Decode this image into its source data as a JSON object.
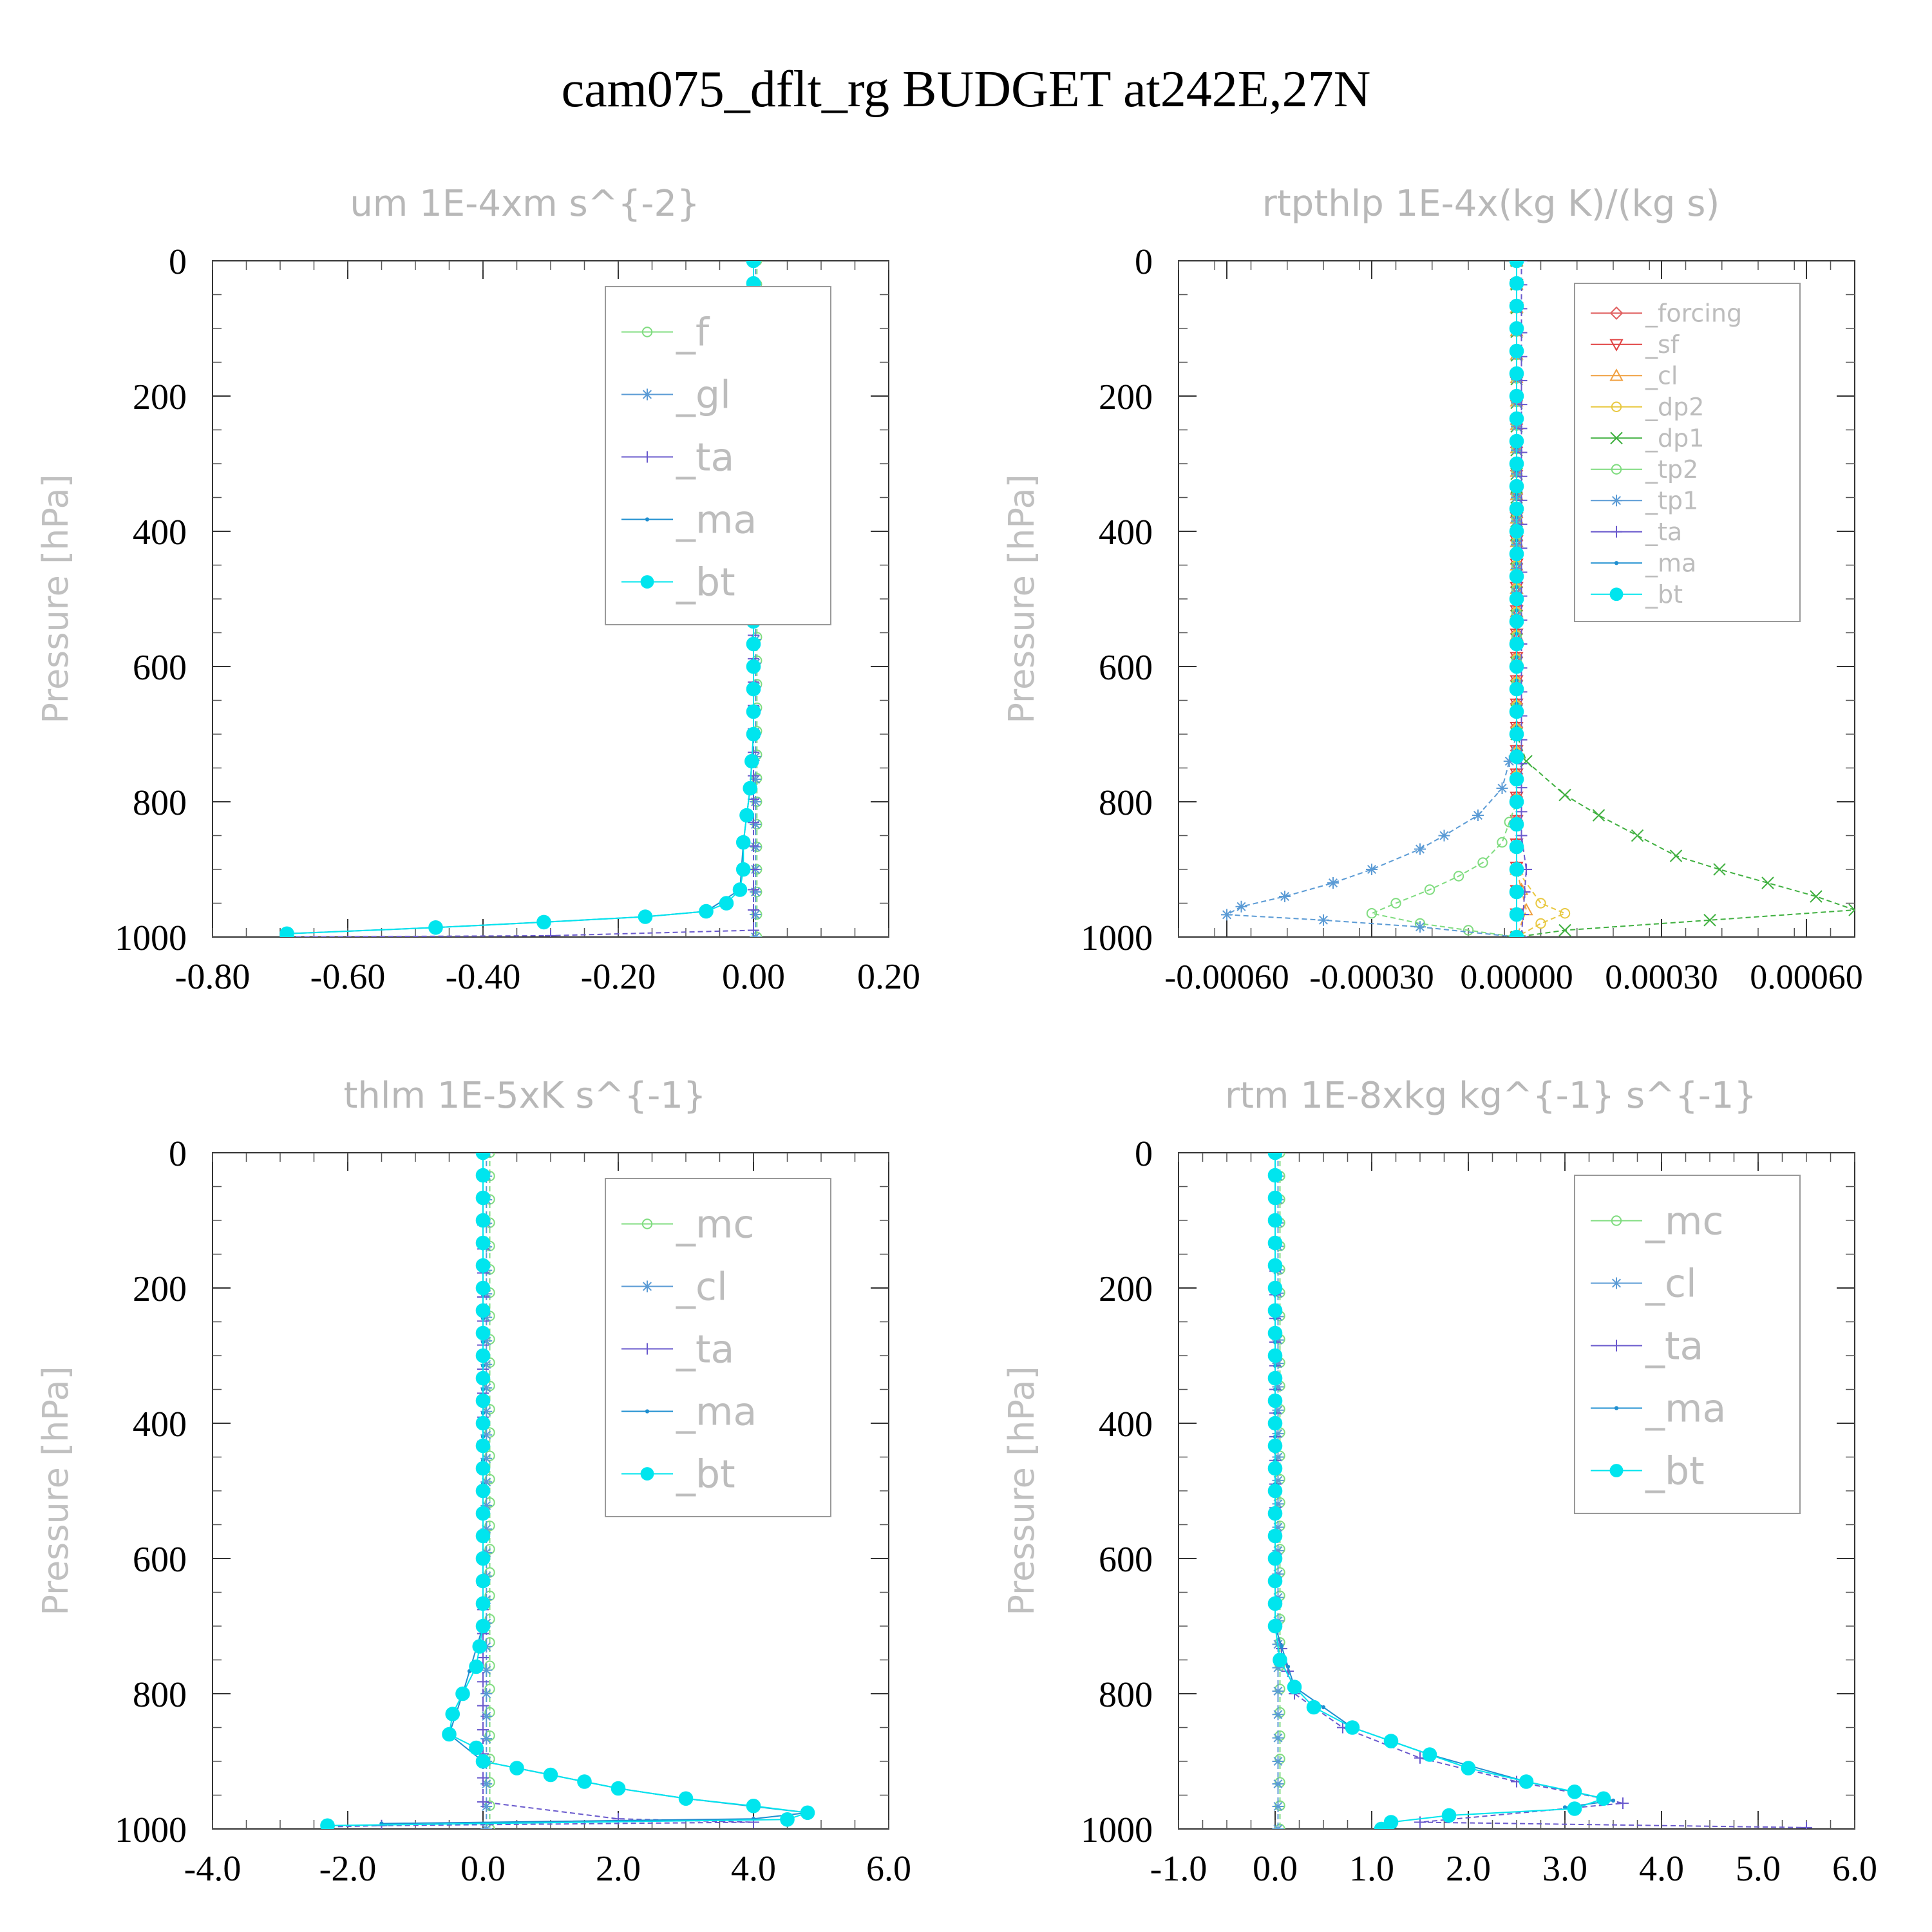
{
  "figure_title": "cam075_dflt_rg  BUDGET at242E,27N",
  "chart_data": [
    {
      "type": "line",
      "title": "um  1E-4xm s^{-2}",
      "ylabel": "Pressure [hPa]",
      "xlim": [
        -0.8,
        0.2
      ],
      "ylim": [
        1000,
        0
      ],
      "xticks": [
        "-0.80",
        "-0.60",
        "-0.40",
        "-0.20",
        "0.00",
        "0.20"
      ],
      "yticks": [
        "0",
        "200",
        "400",
        "600",
        "800",
        "1000"
      ],
      "legend_position": "top-right",
      "legend_font": 60,
      "series": [
        {
          "name": "_f",
          "color": "#7fdc7f",
          "marker": "circle-open"
        },
        {
          "name": "_gl",
          "color": "#5b9bd5",
          "marker": "asterisk"
        },
        {
          "name": "_ta",
          "color": "#6a5acd",
          "marker": "plus"
        },
        {
          "name": "_ma",
          "color": "#1f8fd0",
          "marker": "dot"
        },
        {
          "name": "_bt",
          "color": "#00e5ee",
          "marker": "circle-filled"
        }
      ]
    },
    {
      "type": "line",
      "title": "rtpthlp  1E-4x(kg K)/(kg s)",
      "ylabel": "Pressure [hPa]",
      "xlim": [
        -0.0007,
        0.0007
      ],
      "ylim": [
        1000,
        0
      ],
      "xticks": [
        "-0.00060",
        "-0.00030",
        "0.00000",
        "0.00030",
        "0.00060"
      ],
      "xtick_values": [
        -0.0006,
        -0.0003,
        0.0,
        0.0003,
        0.0006
      ],
      "yticks": [
        "0",
        "200",
        "400",
        "600",
        "800",
        "1000"
      ],
      "legend_position": "top-right",
      "legend_font": 38,
      "series": [
        {
          "name": "_forcing",
          "color": "#e06060",
          "marker": "diamond-open"
        },
        {
          "name": "_sf",
          "color": "#e04040",
          "marker": "triangle-down"
        },
        {
          "name": "_cl",
          "color": "#f0a040",
          "marker": "triangle-up"
        },
        {
          "name": "_dp2",
          "color": "#e8c840",
          "marker": "circle-open"
        },
        {
          "name": "_dp1",
          "color": "#40b040",
          "marker": "x"
        },
        {
          "name": "_tp2",
          "color": "#7fdc7f",
          "marker": "circle-open"
        },
        {
          "name": "_tp1",
          "color": "#5b9bd5",
          "marker": "asterisk"
        },
        {
          "name": "_ta",
          "color": "#6a5acd",
          "marker": "plus"
        },
        {
          "name": "_ma",
          "color": "#1f8fd0",
          "marker": "dot"
        },
        {
          "name": "_bt",
          "color": "#00e5ee",
          "marker": "circle-filled"
        }
      ]
    },
    {
      "type": "line",
      "title": "thlm  1E-5xK s^{-1}",
      "ylabel": "Pressure [hPa]",
      "xlim": [
        -4,
        6
      ],
      "ylim": [
        1000,
        0
      ],
      "xticks": [
        "-4.0",
        "-2.0",
        "0.0",
        "2.0",
        "4.0",
        "6.0"
      ],
      "yticks": [
        "0",
        "200",
        "400",
        "600",
        "800",
        "1000"
      ],
      "legend_position": "top-right",
      "legend_font": 60,
      "series": [
        {
          "name": "_mc",
          "color": "#7fdc7f",
          "marker": "circle-open"
        },
        {
          "name": "_cl",
          "color": "#5b9bd5",
          "marker": "asterisk"
        },
        {
          "name": "_ta",
          "color": "#6a5acd",
          "marker": "plus"
        },
        {
          "name": "_ma",
          "color": "#1f8fd0",
          "marker": "dot"
        },
        {
          "name": "_bt",
          "color": "#00e5ee",
          "marker": "circle-filled"
        }
      ]
    },
    {
      "type": "line",
      "title": "rtm  1E-8xkg kg^{-1} s^{-1}",
      "ylabel": "Pressure [hPa]",
      "xlim": [
        -1,
        6
      ],
      "ylim": [
        1000,
        0
      ],
      "xticks": [
        "-1.0",
        "0.0",
        "1.0",
        "2.0",
        "3.0",
        "4.0",
        "5.0",
        "6.0"
      ],
      "yticks": [
        "0",
        "200",
        "400",
        "600",
        "800",
        "1000"
      ],
      "legend_position": "top-right",
      "legend_font": 60,
      "series": [
        {
          "name": "_mc",
          "color": "#7fdc7f",
          "marker": "circle-open"
        },
        {
          "name": "_cl",
          "color": "#5b9bd5",
          "marker": "asterisk"
        },
        {
          "name": "_ta",
          "color": "#6a5acd",
          "marker": "plus"
        },
        {
          "name": "_ma",
          "color": "#1f8fd0",
          "marker": "dot"
        },
        {
          "name": "_bt",
          "color": "#00e5ee",
          "marker": "circle-filled"
        }
      ]
    }
  ],
  "profiles": {
    "um": {
      "_bt": [
        [
          0,
          0
        ],
        [
          0,
          100
        ],
        [
          0,
          200
        ],
        [
          0,
          300
        ],
        [
          0,
          400
        ],
        [
          0,
          500
        ],
        [
          0,
          600
        ],
        [
          0,
          700
        ],
        [
          -0.005,
          780
        ],
        [
          -0.01,
          820
        ],
        [
          -0.015,
          860
        ],
        [
          -0.015,
          900
        ],
        [
          -0.02,
          930
        ],
        [
          -0.04,
          950
        ],
        [
          -0.07,
          962
        ],
        [
          -0.16,
          970
        ],
        [
          -0.31,
          978
        ],
        [
          -0.47,
          986
        ],
        [
          -0.69,
          995
        ],
        [
          -0.69,
          1000
        ]
      ],
      "_ma": [
        [
          0,
          0
        ],
        [
          0,
          700
        ],
        [
          -0.005,
          780
        ],
        [
          -0.015,
          860
        ],
        [
          -0.02,
          930
        ],
        [
          -0.07,
          962
        ],
        [
          -0.16,
          970
        ],
        [
          -0.31,
          978
        ],
        [
          -0.47,
          986
        ],
        [
          -0.69,
          995
        ]
      ],
      "_ta": [
        [
          0,
          0
        ],
        [
          0,
          900
        ],
        [
          0,
          990
        ],
        [
          -0.3,
          998
        ],
        [
          -0.69,
          1000
        ]
      ],
      "_gl": [
        [
          0.003,
          0
        ],
        [
          0.003,
          700
        ],
        [
          0.003,
          900
        ],
        [
          0.003,
          1000
        ]
      ],
      "_f": [
        [
          0.005,
          0
        ],
        [
          0.005,
          800
        ],
        [
          0.005,
          1000
        ]
      ]
    },
    "rtpthlp": {
      "_dp1": [
        [
          0,
          0
        ],
        [
          0,
          700
        ],
        [
          2e-05,
          740
        ],
        [
          0.0001,
          790
        ],
        [
          0.00017,
          820
        ],
        [
          0.00025,
          850
        ],
        [
          0.00033,
          880
        ],
        [
          0.00042,
          900
        ],
        [
          0.00052,
          920
        ],
        [
          0.00062,
          940
        ],
        [
          0.0007,
          960
        ],
        [
          0.0004,
          975
        ],
        [
          0.0001,
          990
        ],
        [
          0,
          1000
        ]
      ],
      "_tp1": [
        [
          0,
          0
        ],
        [
          0,
          700
        ],
        [
          -3e-05,
          780
        ],
        [
          -8e-05,
          820
        ],
        [
          -0.00015,
          850
        ],
        [
          -0.0002,
          870
        ],
        [
          -0.0003,
          900
        ],
        [
          -0.00038,
          920
        ],
        [
          -0.00048,
          940
        ],
        [
          -0.00057,
          955
        ],
        [
          -0.0006,
          967
        ],
        [
          -0.0004,
          975
        ],
        [
          -0.0002,
          985
        ],
        [
          0,
          1000
        ]
      ],
      "_tp2": [
        [
          0,
          0
        ],
        [
          0,
          800
        ],
        [
          -3e-05,
          860
        ],
        [
          -7e-05,
          890
        ],
        [
          -0.00012,
          910
        ],
        [
          -0.00018,
          930
        ],
        [
          -0.00025,
          950
        ],
        [
          -0.0003,
          965
        ],
        [
          -0.0002,
          980
        ],
        [
          -0.0001,
          990
        ],
        [
          0,
          1000
        ]
      ],
      "_dp2": [
        [
          0,
          0
        ],
        [
          0,
          900
        ],
        [
          5e-05,
          950
        ],
        [
          0.0001,
          965
        ],
        [
          5e-05,
          980
        ],
        [
          0,
          1000
        ]
      ],
      "_cl": [
        [
          0,
          0
        ],
        [
          0,
          900
        ],
        [
          2e-05,
          960
        ],
        [
          0,
          1000
        ]
      ],
      "_bt": [
        [
          0,
          0
        ],
        [
          0,
          200
        ],
        [
          0,
          400
        ],
        [
          0,
          600
        ],
        [
          0,
          800
        ],
        [
          0,
          1000
        ]
      ],
      "_ma": [
        [
          0,
          0
        ],
        [
          0,
          1000
        ]
      ],
      "_ta": [
        [
          1e-05,
          0
        ],
        [
          1e-05,
          850
        ],
        [
          2e-05,
          900
        ],
        [
          1e-05,
          1000
        ]
      ],
      "_sf": [
        [
          0,
          0
        ],
        [
          0,
          1000
        ]
      ],
      "_forcing": [
        [
          0,
          0
        ],
        [
          0,
          1000
        ]
      ]
    },
    "thlm": {
      "_bt": [
        [
          0,
          0
        ],
        [
          0,
          100
        ],
        [
          0,
          200
        ],
        [
          0,
          300
        ],
        [
          0,
          400
        ],
        [
          0,
          500
        ],
        [
          0,
          600
        ],
        [
          0,
          700
        ],
        [
          -0.1,
          760
        ],
        [
          -0.3,
          800
        ],
        [
          -0.45,
          830
        ],
        [
          -0.5,
          860
        ],
        [
          -0.1,
          880
        ],
        [
          0,
          900
        ],
        [
          0.5,
          910
        ],
        [
          1.0,
          920
        ],
        [
          1.5,
          930
        ],
        [
          2.0,
          940
        ],
        [
          3.0,
          955
        ],
        [
          4.0,
          966
        ],
        [
          4.8,
          976
        ],
        [
          4.5,
          986
        ],
        [
          -2.3,
          995
        ]
      ],
      "_ma": [
        [
          0,
          0
        ],
        [
          0,
          700
        ],
        [
          -0.3,
          800
        ],
        [
          -0.5,
          860
        ],
        [
          0,
          900
        ],
        [
          1.0,
          920
        ],
        [
          2.0,
          940
        ],
        [
          3.0,
          955
        ],
        [
          4.8,
          976
        ],
        [
          4.0,
          985
        ],
        [
          -1.5,
          992
        ]
      ],
      "_ta": [
        [
          0,
          0
        ],
        [
          0,
          960
        ],
        [
          2.0,
          985
        ],
        [
          4.0,
          990
        ],
        [
          -1.5,
          995
        ],
        [
          -2.3,
          997
        ]
      ],
      "_cl": [
        [
          0.05,
          0
        ],
        [
          0.05,
          800
        ],
        [
          0.05,
          1000
        ]
      ],
      "_mc": [
        [
          0.1,
          0
        ],
        [
          0.1,
          1000
        ]
      ]
    },
    "rtm": {
      "_bt": [
        [
          0,
          0
        ],
        [
          0,
          100
        ],
        [
          0,
          200
        ],
        [
          0,
          300
        ],
        [
          0,
          400
        ],
        [
          0,
          500
        ],
        [
          0,
          600
        ],
        [
          0,
          700
        ],
        [
          0.05,
          750
        ],
        [
          0.2,
          790
        ],
        [
          0.4,
          820
        ],
        [
          0.8,
          850
        ],
        [
          1.2,
          870
        ],
        [
          1.6,
          890
        ],
        [
          2.0,
          910
        ],
        [
          2.6,
          930
        ],
        [
          3.1,
          945
        ],
        [
          3.4,
          955
        ],
        [
          3.1,
          970
        ],
        [
          1.8,
          980
        ],
        [
          1.2,
          990
        ],
        [
          1.1,
          1000
        ]
      ],
      "_ma": [
        [
          0,
          0
        ],
        [
          0,
          700
        ],
        [
          0.2,
          790
        ],
        [
          0.8,
          850
        ],
        [
          1.6,
          890
        ],
        [
          2.6,
          930
        ],
        [
          3.5,
          958
        ],
        [
          3.0,
          968
        ]
      ],
      "_ta": [
        [
          0,
          0
        ],
        [
          0,
          700
        ],
        [
          0.2,
          800
        ],
        [
          0.7,
          850
        ],
        [
          1.5,
          895
        ],
        [
          2.5,
          930
        ],
        [
          3.4,
          955
        ],
        [
          3.6,
          962
        ],
        [
          1.5,
          990
        ],
        [
          5.5,
          998
        ]
      ],
      "_cl": [
        [
          0.03,
          0
        ],
        [
          0.03,
          900
        ],
        [
          0.03,
          1000
        ]
      ],
      "_mc": [
        [
          0.05,
          0
        ],
        [
          0.05,
          1000
        ]
      ]
    }
  }
}
